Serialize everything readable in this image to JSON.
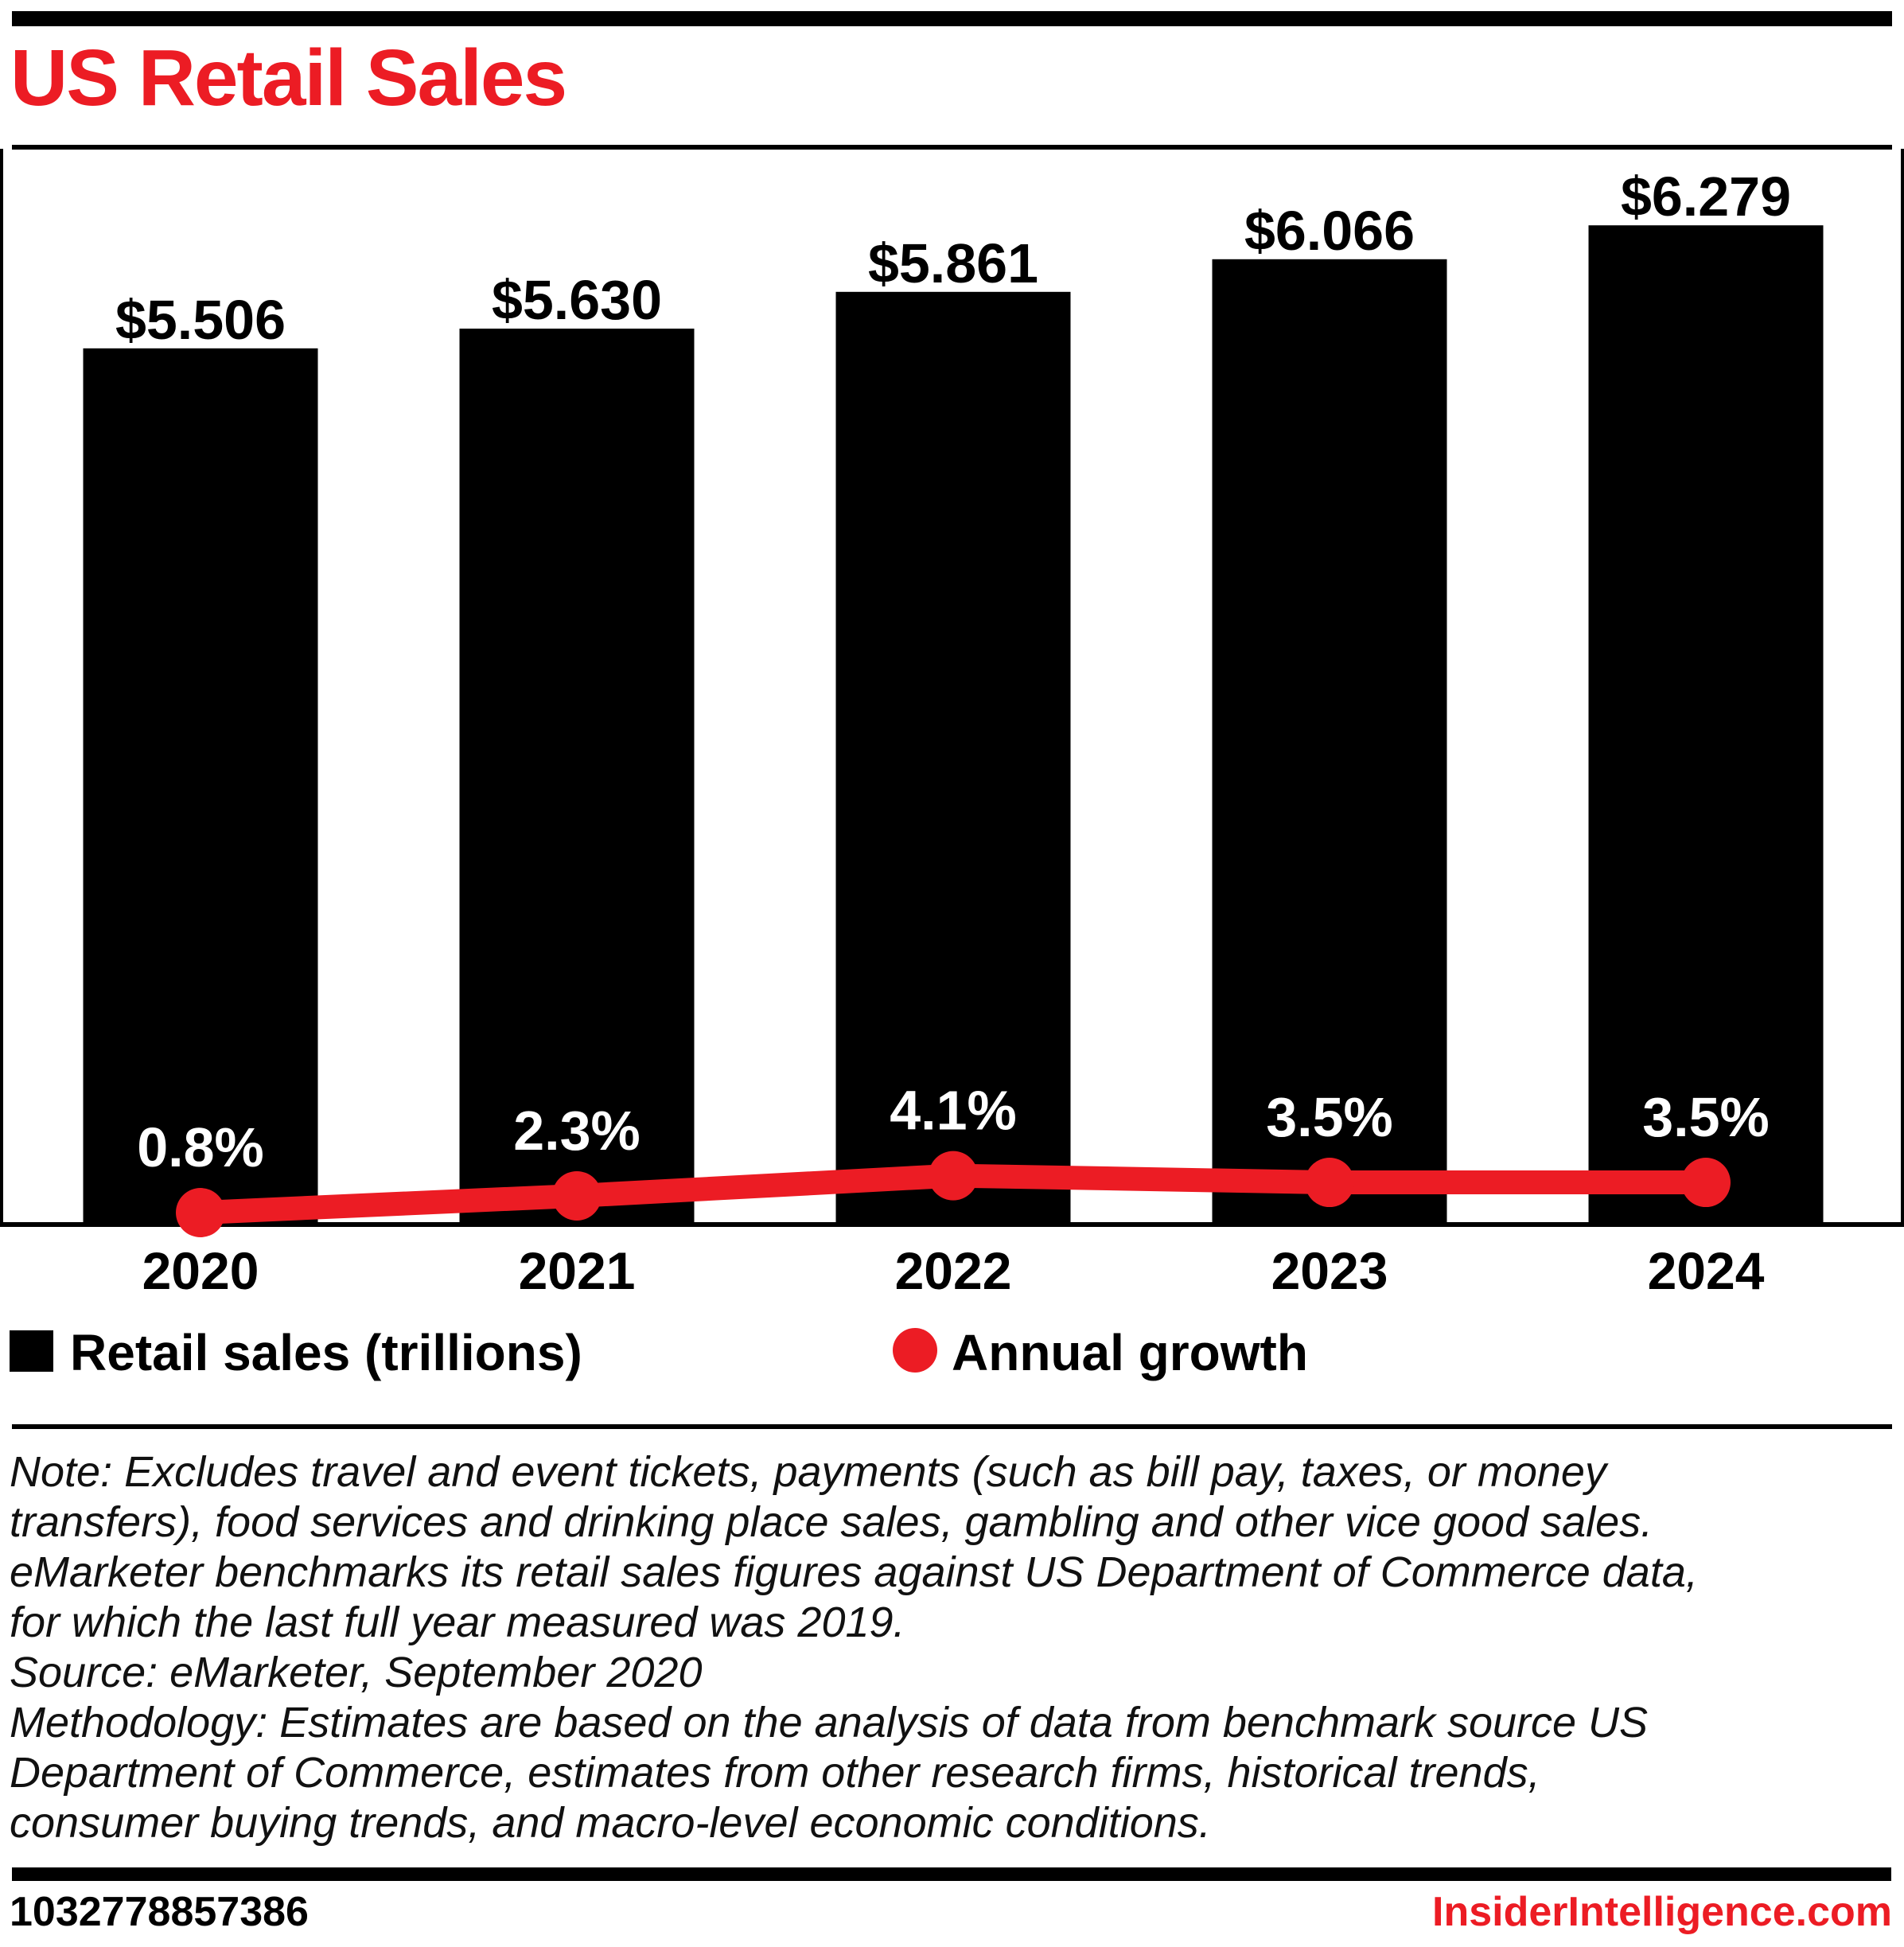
{
  "header": {
    "title": "US Retail Sales"
  },
  "chart_data": {
    "type": "bar",
    "title": "US Retail Sales",
    "categories": [
      "2020",
      "2021",
      "2022",
      "2023",
      "2024"
    ],
    "series": [
      {
        "name": "Retail sales (trillions)",
        "type": "bar",
        "unit": "USD trillions",
        "values": [
          5.506,
          5.63,
          5.861,
          6.066,
          6.279
        ],
        "data_labels": [
          "$5.506",
          "$5.630",
          "$5.861",
          "$6.066",
          "$6.279"
        ],
        "color": "#000000"
      },
      {
        "name": "Annual growth",
        "type": "line",
        "unit": "percent",
        "values": [
          0.8,
          2.3,
          4.1,
          3.5,
          3.5
        ],
        "data_labels": [
          "0.8%",
          "2.3%",
          "4.1%",
          "3.5%",
          "3.5%"
        ],
        "color": "#ec1c24"
      }
    ],
    "value_axis_range": [
      0,
      6.8
    ],
    "gridlines": false,
    "legend_position": "bottom"
  },
  "legend": {
    "items": [
      {
        "label": "Retail sales (trillions)",
        "swatch": "black-square"
      },
      {
        "label": "Annual growth",
        "swatch": "red-circle"
      }
    ]
  },
  "notes": {
    "lines": [
      "Note: Excludes travel and event tickets, payments (such as bill pay, taxes, or money",
      "transfers), food services and drinking place sales, gambling and other vice good sales.",
      "eMarketer benchmarks its retail sales figures against US Department of Commerce data,",
      "for which the last full year measured was 2019.",
      "Source: eMarketer, September 2020",
      "Methodology: Estimates are based on the analysis of data from benchmark source US",
      "Department of Commerce, estimates from other research firms, historical trends,",
      "consumer buying trends, and macro-level economic conditions."
    ]
  },
  "footer": {
    "chart_id": "1032778857386",
    "site": "InsiderIntelligence.com"
  },
  "colors": {
    "accent_red": "#ec1c24",
    "bar_black": "#000000",
    "background": "#ffffff"
  }
}
